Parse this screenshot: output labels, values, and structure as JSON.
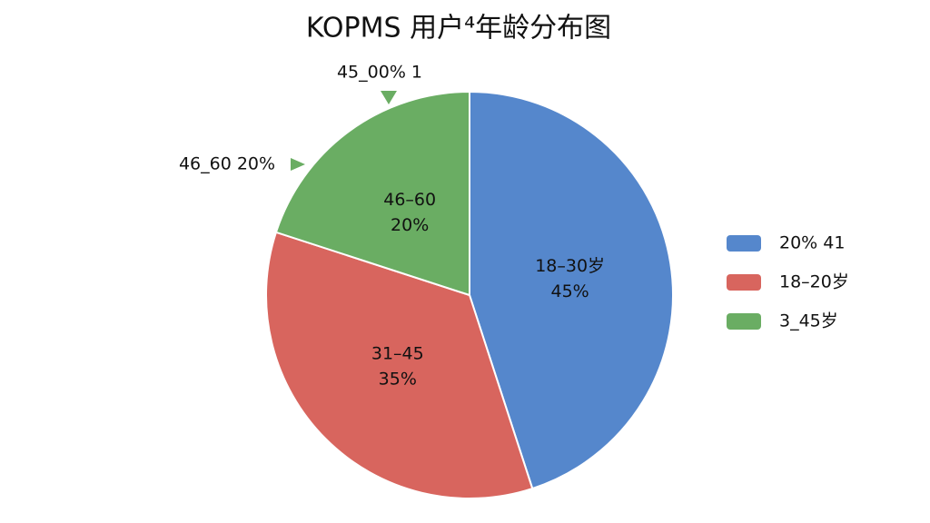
{
  "chart_data": {
    "type": "pie",
    "title": "KOPMS  用户⁴年龄分布图",
    "categories": [
      "18–30岁",
      "31–45",
      "46–60"
    ],
    "values": [
      45,
      35,
      20
    ],
    "value_labels": [
      "45%",
      "35%",
      "20%"
    ],
    "colors": [
      "#5587cc",
      "#d8655e",
      "#6aad63"
    ],
    "legend": [
      "20%  41",
      "18–20岁",
      "3_45岁"
    ],
    "annotations": [
      "45_00%  1",
      "46_60  20%"
    ]
  }
}
